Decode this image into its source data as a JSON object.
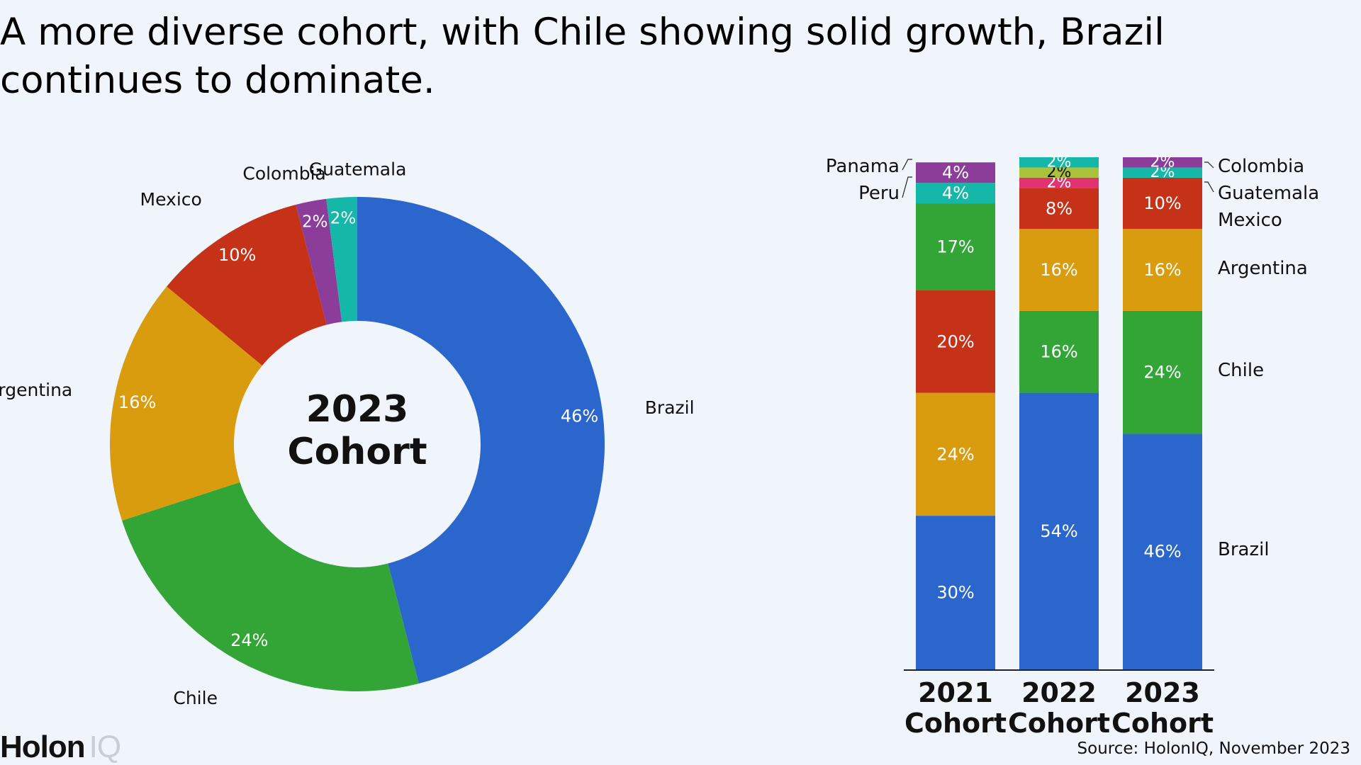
{
  "headline": "A more diverse cohort, with Chile showing solid growth, Brazil continues to dominate.",
  "source": "Source: HolonIQ, November 2023",
  "logo": {
    "word": "Holon",
    "suffix": "IQ"
  },
  "colors": {
    "Brazil": "#2b66cc",
    "Chile": "#33a537",
    "Argentina": "#d99c0e",
    "Mexico": "#c53218",
    "Colombia": "#8c3d9a",
    "Guatemala": "#14b7a8",
    "Panama": "#8c3d9a",
    "Peru": "#14b7a8",
    "Pink": "#e0336f",
    "Lime": "#a9c23a"
  },
  "chart_data": [
    {
      "type": "pie",
      "center_label": [
        "2023",
        "Cohort"
      ],
      "series": [
        {
          "name": "Brazil",
          "value": 46,
          "label": "46%"
        },
        {
          "name": "Chile",
          "value": 24,
          "label": "24%"
        },
        {
          "name": "Argentina",
          "value": 16,
          "label": "16%"
        },
        {
          "name": "Mexico",
          "value": 10,
          "label": "10%"
        },
        {
          "name": "Colombia",
          "value": 2,
          "label": "2%"
        },
        {
          "name": "Guatemala",
          "value": 2,
          "label": "2%"
        }
      ]
    },
    {
      "type": "bar",
      "stacked": true,
      "categories": [
        [
          "2021",
          "Cohort"
        ],
        [
          "2022",
          "Cohort"
        ],
        [
          "2023",
          "Cohort"
        ]
      ],
      "series": [
        {
          "name": "Brazil",
          "color": "Brazil",
          "values": [
            30,
            54,
            46
          ],
          "labels": [
            "30%",
            "54%",
            "46%"
          ]
        },
        {
          "name": "Argentina",
          "color": "Argentina",
          "values": [
            24,
            0,
            0
          ],
          "labels": [
            "24%",
            "",
            ""
          ]
        },
        {
          "name": "Chile",
          "color": "Chile",
          "values": [
            0,
            16,
            24
          ],
          "labels": [
            "",
            "16%",
            "24%"
          ]
        },
        {
          "name": "Mexico",
          "color": "Mexico",
          "values": [
            20,
            0,
            0
          ],
          "labels": [
            "20%",
            "",
            ""
          ]
        },
        {
          "name": "Chile",
          "color": "Chile",
          "values": [
            17,
            0,
            0
          ],
          "labels": [
            "17%",
            "",
            ""
          ]
        },
        {
          "name": "Argentina",
          "color": "Argentina",
          "values": [
            0,
            16,
            16
          ],
          "labels": [
            "",
            "16%",
            "16%"
          ]
        },
        {
          "name": "Mexico",
          "color": "Mexico",
          "values": [
            0,
            8,
            10
          ],
          "labels": [
            "",
            "8%",
            "10%"
          ]
        },
        {
          "name": "Peru",
          "color": "Peru",
          "values": [
            4,
            0,
            0
          ],
          "labels": [
            "4%",
            "",
            ""
          ]
        },
        {
          "name": "Panama",
          "color": "Panama",
          "values": [
            4,
            0,
            0
          ],
          "labels": [
            "4%",
            "",
            ""
          ]
        },
        {
          "name": "",
          "color": "Pink",
          "values": [
            0,
            2,
            0
          ],
          "labels": [
            "",
            "2%",
            ""
          ]
        },
        {
          "name": "",
          "color": "Lime",
          "values": [
            0,
            2,
            0
          ],
          "labels": [
            "",
            "2%",
            ""
          ]
        },
        {
          "name": "",
          "color": "Peru",
          "values": [
            0,
            2,
            0
          ],
          "labels": [
            "",
            "2%",
            ""
          ]
        },
        {
          "name": "Guatemala",
          "color": "Guatemala",
          "values": [
            0,
            0,
            2
          ],
          "labels": [
            "",
            "",
            "2%"
          ]
        },
        {
          "name": "Colombia",
          "color": "Colombia",
          "values": [
            0,
            0,
            2
          ],
          "labels": [
            "",
            "",
            "2%"
          ]
        }
      ],
      "right_labels": [
        "Colombia",
        "Guatemala",
        "Mexico",
        "Argentina",
        "Chile",
        "Brazil"
      ],
      "left_labels": [
        "Panama",
        "Peru"
      ],
      "ylim": [
        0,
        100
      ]
    }
  ]
}
